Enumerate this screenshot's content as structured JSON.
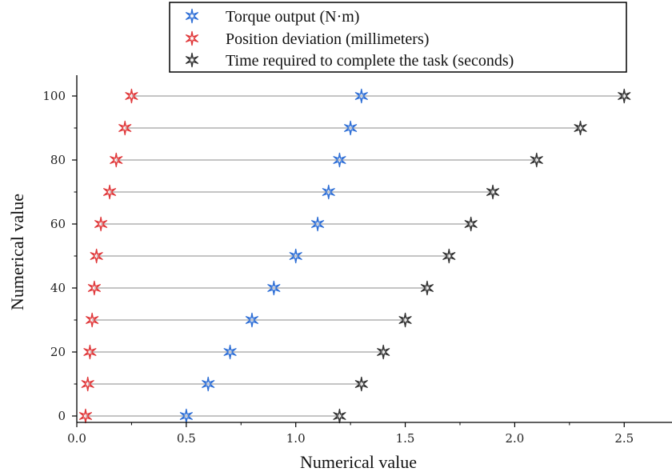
{
  "chart_data": {
    "type": "dot",
    "xlabel": "Numerical value",
    "ylabel": "Numerical value",
    "xlim": [
      0,
      2.7
    ],
    "ylim": [
      -2,
      104
    ],
    "x_ticks": [
      "0.0",
      "0.5",
      "1.0",
      "1.5",
      "2.0",
      "2.5"
    ],
    "x_tick_values": [
      0,
      0.5,
      1.0,
      1.5,
      2.0,
      2.5
    ],
    "y_ticks": [
      "0",
      "20",
      "40",
      "60",
      "80",
      "100"
    ],
    "y_tick_values": [
      0,
      20,
      40,
      60,
      80,
      100
    ],
    "y": [
      0,
      10,
      20,
      30,
      40,
      50,
      60,
      70,
      80,
      90,
      100
    ],
    "grid": false,
    "legend_position": "top",
    "series": [
      {
        "name": "Torque output (N·m)",
        "color": "#2f6fd6",
        "values": [
          0.5,
          0.6,
          0.7,
          0.8,
          0.9,
          1.0,
          1.1,
          1.15,
          1.2,
          1.25,
          1.3
        ]
      },
      {
        "name": "Position deviation (millimeters)",
        "color": "#e0393b",
        "values": [
          0.04,
          0.05,
          0.06,
          0.07,
          0.08,
          0.09,
          0.11,
          0.15,
          0.18,
          0.22,
          0.25
        ]
      },
      {
        "name": "Time required to complete the task (seconds)",
        "color": "#333333",
        "values": [
          1.2,
          1.3,
          1.4,
          1.5,
          1.6,
          1.7,
          1.8,
          1.9,
          2.1,
          2.3,
          2.5
        ]
      }
    ],
    "connector_color": "#c4c4c4"
  }
}
